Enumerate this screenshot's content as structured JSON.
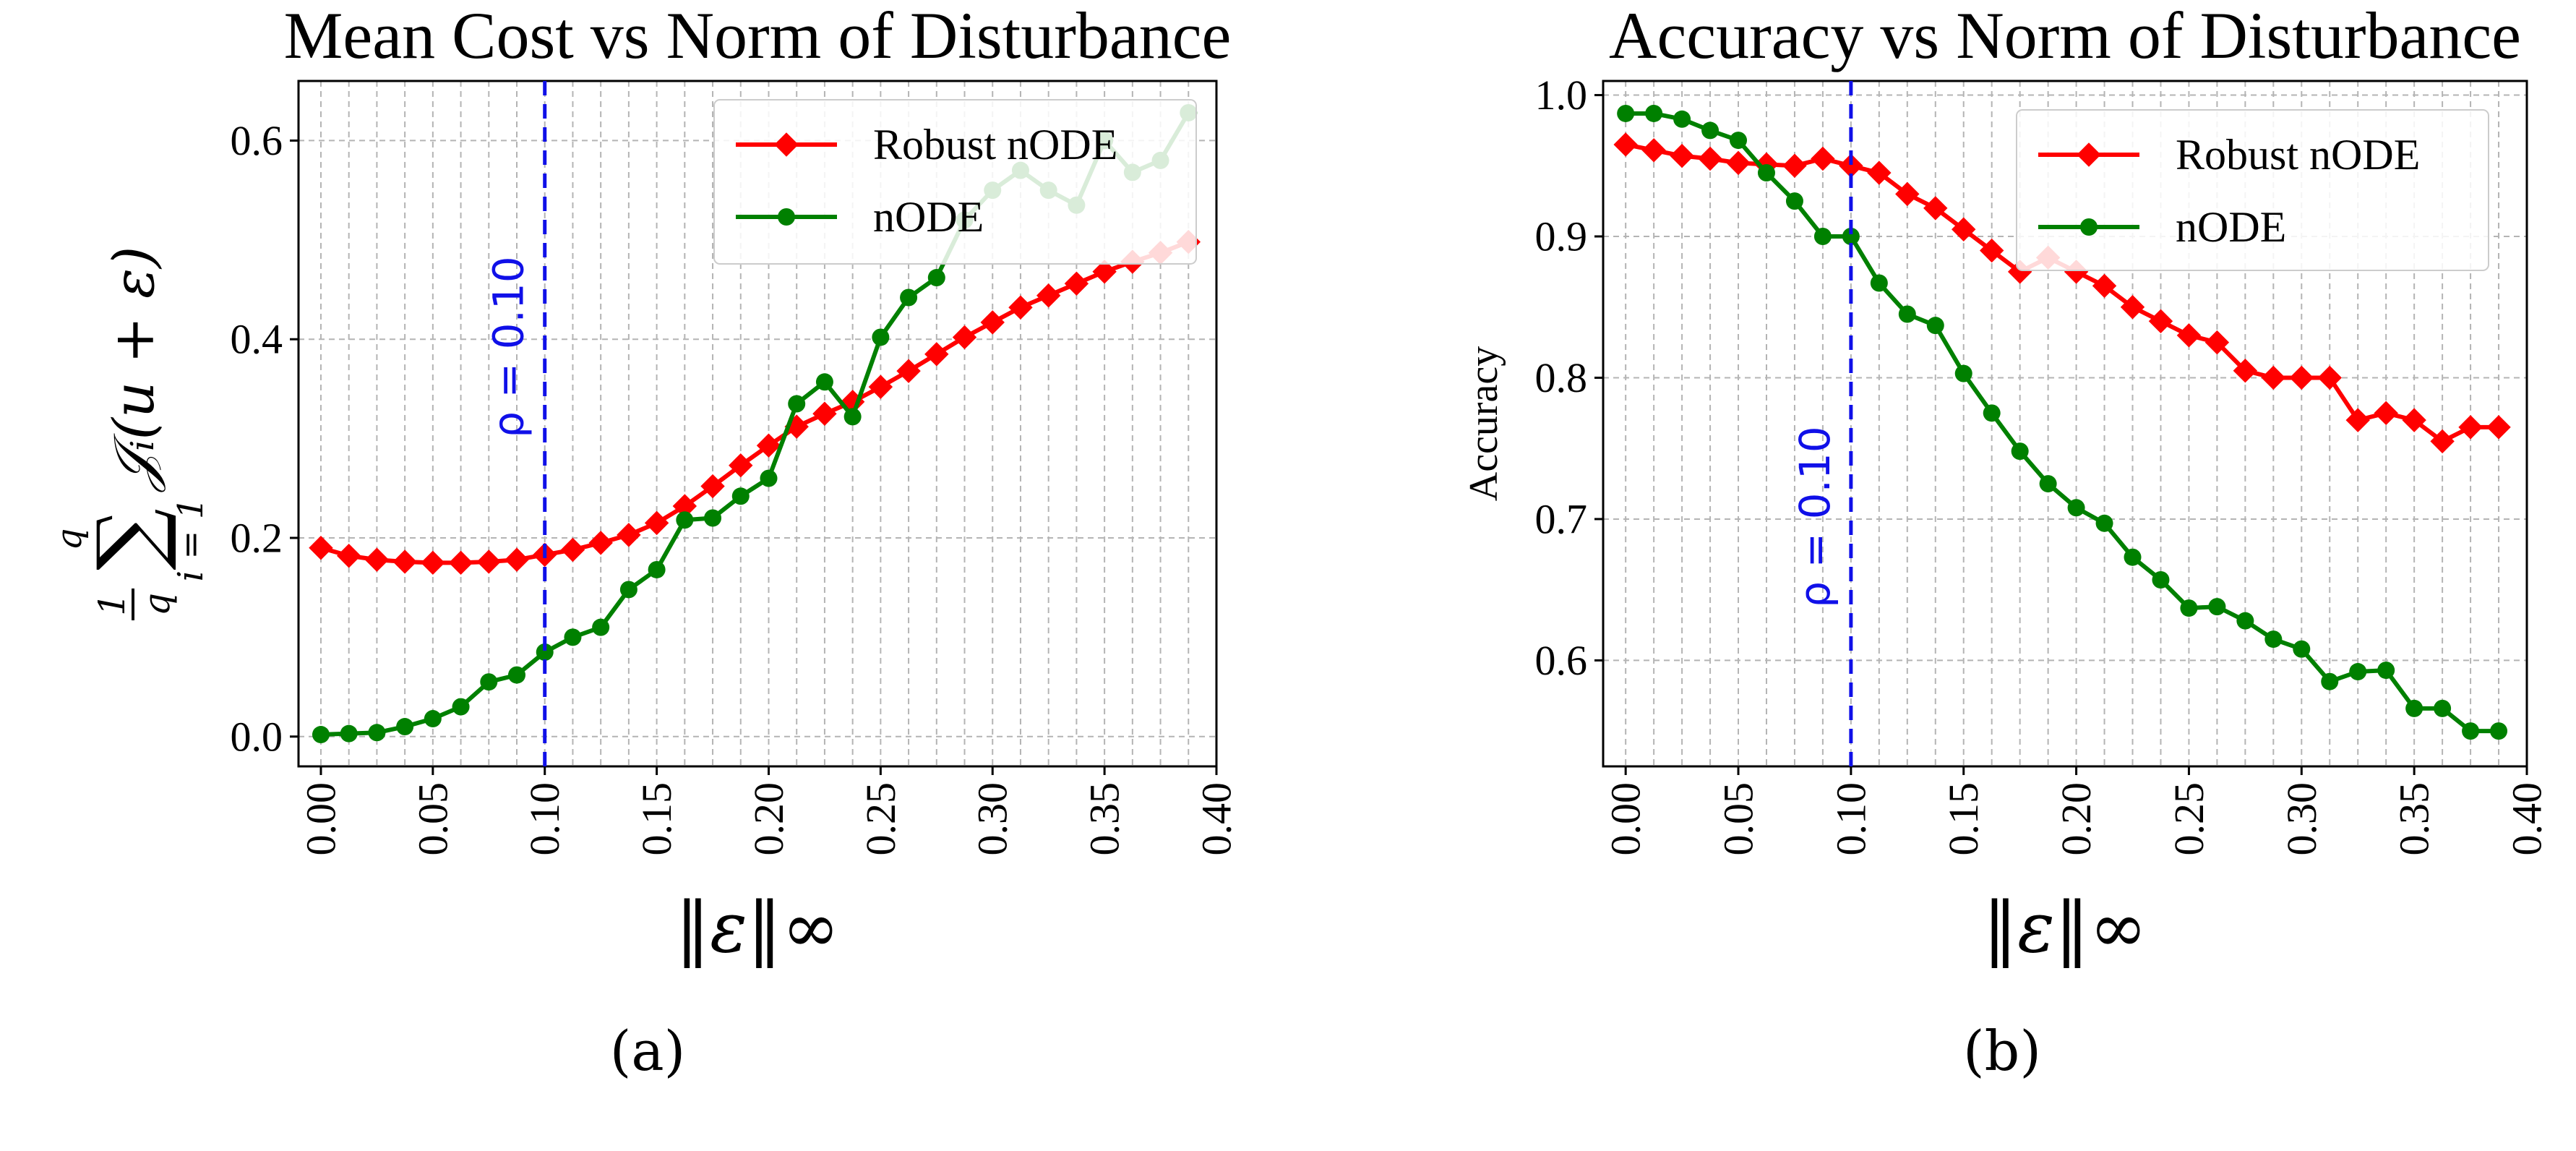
{
  "chart_data": [
    {
      "type": "line",
      "title": "Mean Cost vs Norm of Disturbance",
      "xlabel": "‖ε‖∞",
      "ylabel": "1/q Σ_{i=1}^{q} J_i(u+ε)",
      "ylabel_parts": {
        "frac_num": "1",
        "frac_den": "q",
        "sum": "∑",
        "sum_top": "q",
        "sum_bottom": "i = 1",
        "body": "𝒥ᵢ(u + ε)"
      },
      "caption": "(a)",
      "xlim": [
        -0.01,
        0.4
      ],
      "ylim": [
        -0.03,
        0.66
      ],
      "x_ticks": [
        "0.00",
        "0.05",
        "0.10",
        "0.15",
        "0.20",
        "0.25",
        "0.30",
        "0.35",
        "0.40"
      ],
      "y_ticks": [
        "0.0",
        "0.2",
        "0.4",
        "0.6"
      ],
      "vline": {
        "x": 0.1,
        "label": "ρ = 0.10"
      },
      "legend_position": "top-right",
      "x": [
        0.0,
        0.0125,
        0.025,
        0.0375,
        0.05,
        0.0625,
        0.075,
        0.0875,
        0.1,
        0.1125,
        0.125,
        0.1375,
        0.15,
        0.1625,
        0.175,
        0.1875,
        0.2,
        0.2125,
        0.225,
        0.2375,
        0.25,
        0.2625,
        0.275,
        0.2875,
        0.3,
        0.3125,
        0.325,
        0.3375,
        0.35,
        0.3625,
        0.375,
        0.3875
      ],
      "series": [
        {
          "name": "Robust nODE",
          "color": "#ff0000",
          "marker": "diamond",
          "values": [
            0.19,
            0.182,
            0.178,
            0.176,
            0.175,
            0.175,
            0.176,
            0.178,
            0.183,
            0.188,
            0.195,
            0.203,
            0.215,
            0.232,
            0.252,
            0.273,
            0.293,
            0.312,
            0.325,
            0.337,
            0.352,
            0.368,
            0.385,
            0.402,
            0.417,
            0.432,
            0.444,
            0.456,
            0.468,
            0.478,
            0.487,
            0.498
          ]
        },
        {
          "name": "nODE",
          "color": "#008000",
          "marker": "circle",
          "values": [
            0.002,
            0.003,
            0.004,
            0.01,
            0.018,
            0.03,
            0.055,
            0.062,
            0.085,
            0.1,
            0.11,
            0.148,
            0.168,
            0.218,
            0.22,
            0.242,
            0.26,
            0.335,
            0.357,
            0.322,
            0.402,
            0.442,
            0.462,
            0.52,
            0.55,
            0.57,
            0.55,
            0.535,
            0.6,
            0.568,
            0.58,
            0.628
          ]
        }
      ]
    },
    {
      "type": "line",
      "title": "Accuracy vs Norm of Disturbance",
      "xlabel": "‖ε‖∞",
      "ylabel": "Accuracy",
      "caption": "(b)",
      "xlim": [
        -0.01,
        0.4
      ],
      "ylim": [
        0.525,
        1.01
      ],
      "x_ticks": [
        "0.00",
        "0.05",
        "0.10",
        "0.15",
        "0.20",
        "0.25",
        "0.30",
        "0.35",
        "0.40"
      ],
      "y_ticks": [
        "0.6",
        "0.7",
        "0.8",
        "0.9",
        "1.0"
      ],
      "vline": {
        "x": 0.1,
        "label": "ρ = 0.10"
      },
      "legend_position": "top-right",
      "x": [
        0.0,
        0.0125,
        0.025,
        0.0375,
        0.05,
        0.0625,
        0.075,
        0.0875,
        0.1,
        0.1125,
        0.125,
        0.1375,
        0.15,
        0.1625,
        0.175,
        0.1875,
        0.2,
        0.2125,
        0.225,
        0.2375,
        0.25,
        0.2625,
        0.275,
        0.2875,
        0.3,
        0.3125,
        0.325,
        0.3375,
        0.35,
        0.3625,
        0.375,
        0.3875
      ],
      "series": [
        {
          "name": "Robust nODE",
          "color": "#ff0000",
          "marker": "diamond",
          "values": [
            0.965,
            0.961,
            0.957,
            0.955,
            0.952,
            0.951,
            0.95,
            0.955,
            0.95,
            0.945,
            0.93,
            0.92,
            0.905,
            0.89,
            0.875,
            0.885,
            0.875,
            0.865,
            0.85,
            0.84,
            0.83,
            0.825,
            0.805,
            0.8,
            0.8,
            0.8,
            0.77,
            0.775,
            0.77,
            0.755,
            0.765,
            0.765
          ]
        },
        {
          "name": "nODE",
          "color": "#008000",
          "marker": "circle",
          "values": [
            0.987,
            0.987,
            0.983,
            0.975,
            0.968,
            0.945,
            0.925,
            0.9,
            0.9,
            0.867,
            0.845,
            0.837,
            0.803,
            0.775,
            0.748,
            0.725,
            0.708,
            0.697,
            0.673,
            0.657,
            0.637,
            0.638,
            0.628,
            0.615,
            0.608,
            0.585,
            0.592,
            0.593,
            0.566,
            0.566,
            0.55,
            0.55
          ]
        }
      ]
    }
  ]
}
